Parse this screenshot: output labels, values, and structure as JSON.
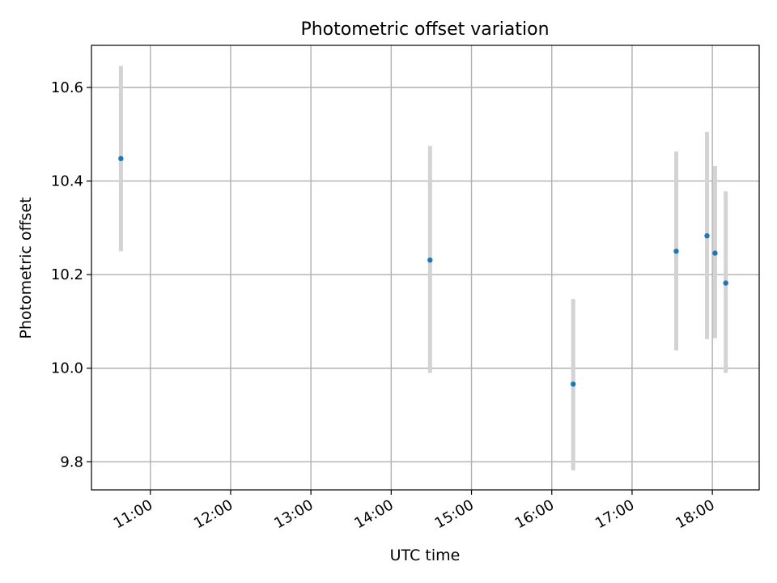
{
  "colors": {
    "point": "#1f77b4",
    "errorbar": "#d3d3d3",
    "grid": "#b0b0b0",
    "axes": "#000000",
    "background": "#ffffff"
  },
  "chart_data": {
    "type": "scatter",
    "title": "Photometric offset variation",
    "xlabel": "UTC time",
    "ylabel": "Photometric offset",
    "grid": true,
    "x_unit": "UTC time (HH:MM)",
    "xlim": [
      "10:16",
      "18:35"
    ],
    "ylim": [
      9.74,
      10.69
    ],
    "x_ticks": [
      "11:00",
      "12:00",
      "13:00",
      "14:00",
      "15:00",
      "16:00",
      "17:00",
      "18:00"
    ],
    "y_ticks": [
      "9.8",
      "10.0",
      "10.2",
      "10.4",
      "10.6"
    ],
    "points": [
      {
        "x": "10:38",
        "y": 10.448,
        "yerr_low": 10.25,
        "yerr_high": 10.646
      },
      {
        "x": "14:29",
        "y": 10.231,
        "yerr_low": 9.99,
        "yerr_high": 10.475
      },
      {
        "x": "16:16",
        "y": 9.966,
        "yerr_low": 9.782,
        "yerr_high": 10.148
      },
      {
        "x": "17:33",
        "y": 10.25,
        "yerr_low": 10.038,
        "yerr_high": 10.463
      },
      {
        "x": "17:56",
        "y": 10.283,
        "yerr_low": 10.062,
        "yerr_high": 10.505
      },
      {
        "x": "18:02",
        "y": 10.246,
        "yerr_low": 10.064,
        "yerr_high": 10.432
      },
      {
        "x": "18:10",
        "y": 10.182,
        "yerr_low": 9.99,
        "yerr_high": 10.378
      }
    ]
  }
}
